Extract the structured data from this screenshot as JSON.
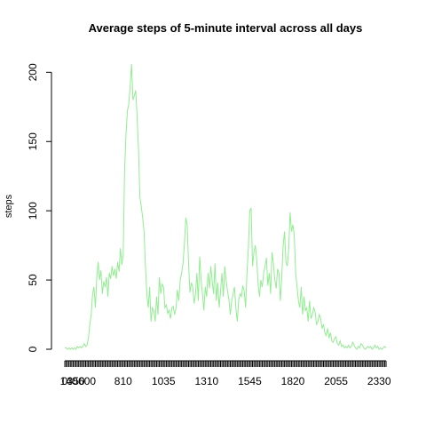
{
  "chart_data": {
    "type": "line",
    "title": "Average steps of 5-minute interval across all days",
    "xlabel": "",
    "ylabel": "steps",
    "xlim": [
      0,
      2355
    ],
    "ylim": [
      0,
      206
    ],
    "x_tick_labels": [
      "0",
      "140",
      "350",
      "600",
      "810",
      "1035",
      "1310",
      "1545",
      "1820",
      "2055",
      "2330"
    ],
    "y_ticks": [
      0,
      50,
      100,
      150,
      200
    ],
    "series_color": "#90ee90",
    "series": [
      {
        "x": [
          0,
          55,
          110,
          165,
          220,
          275,
          300,
          330,
          355,
          410,
          445,
          500,
          505,
          530,
          550,
          555,
          600,
          605,
          610,
          615,
          620,
          625,
          630,
          635,
          640,
          645,
          650,
          655,
          700,
          705,
          710,
          715,
          720,
          725,
          730,
          735,
          740,
          745,
          750,
          755,
          800,
          805,
          810,
          815,
          820,
          825,
          830,
          835,
          840,
          845,
          850,
          855,
          900,
          905,
          910,
          915,
          920,
          925,
          930,
          935,
          940,
          945,
          950,
          955,
          1000,
          1005,
          1010,
          1015,
          1020,
          1025,
          1030,
          1035,
          1040,
          1045,
          1050,
          1055,
          1100,
          1105,
          1110,
          1115,
          1120,
          1125,
          1130,
          1135,
          1140,
          1145,
          1150,
          1155,
          1200,
          1205,
          1210,
          1215,
          1220,
          1225,
          1230,
          1235,
          1240,
          1245,
          1250,
          1255,
          1300,
          1305,
          1310,
          1315,
          1320,
          1325,
          1330,
          1335,
          1340,
          1345,
          1350,
          1355,
          1400,
          1405,
          1410,
          1415,
          1420,
          1425,
          1430,
          1435,
          1440,
          1445,
          1450,
          1455,
          1500,
          1505,
          1510,
          1515,
          1520,
          1525,
          1530,
          1535,
          1540,
          1545,
          1550,
          1555,
          1600,
          1605,
          1610,
          1615,
          1620,
          1625,
          1630,
          1635,
          1640,
          1645,
          1650,
          1655,
          1700,
          1705,
          1710,
          1715,
          1720,
          1725,
          1730,
          1735,
          1740,
          1745,
          1750,
          1755,
          1800,
          1805,
          1810,
          1815,
          1820,
          1825,
          1830,
          1835,
          1840,
          1845,
          1850,
          1855,
          1900,
          1905,
          1910,
          1915,
          1920,
          1925,
          1930,
          1935,
          1940,
          1945,
          1950,
          1955,
          2000,
          2005,
          2010,
          2015,
          2020,
          2025,
          2030,
          2035,
          2040,
          2045,
          2050,
          2055,
          2100,
          2105,
          2110,
          2115,
          2120,
          2125,
          2130,
          2135,
          2140,
          2145,
          2150,
          2155,
          2200,
          2205,
          2210,
          2215,
          2220,
          2225,
          2230,
          2235,
          2240,
          2245,
          2250,
          2255,
          2300,
          2305,
          2310,
          2315,
          2320,
          2325,
          2330,
          2335,
          2340,
          2345,
          2350,
          2355
        ],
        "y": [
          1,
          1,
          0,
          1,
          0,
          1,
          0,
          1,
          0,
          2,
          1,
          2,
          1,
          2,
          4,
          2,
          3,
          8,
          18,
          25,
          40,
          45,
          30,
          52,
          63,
          50,
          57,
          40,
          49,
          45,
          52,
          38,
          55,
          51,
          60,
          53,
          58,
          51,
          63,
          56,
          73,
          61,
          68,
          130,
          155,
          172,
          177,
          190,
          206,
          180,
          183,
          187,
          168,
          145,
          110,
          103,
          95,
          85,
          60,
          40,
          30,
          45,
          20,
          30,
          28,
          20,
          38,
          25,
          52,
          40,
          47,
          45,
          30,
          32,
          26,
          28,
          22,
          30,
          31,
          25,
          30,
          43,
          35,
          50,
          55,
          62,
          76,
          95,
          90,
          62,
          41,
          48,
          45,
          33,
          40,
          55,
          35,
          67,
          50,
          40,
          28,
          45,
          38,
          55,
          44,
          60,
          49,
          40,
          62,
          35,
          48,
          30,
          42,
          55,
          38,
          60,
          50,
          42,
          36,
          25,
          35,
          40,
          45,
          30,
          20,
          35,
          40,
          38,
          46,
          42,
          30,
          55,
          73,
          100,
          102,
          60,
          70,
          75,
          65,
          47,
          38,
          50,
          45,
          55,
          60,
          66,
          46,
          55,
          40,
          70,
          62,
          50,
          44,
          58,
          55,
          35,
          52,
          75,
          85,
          63,
          60,
          72,
          99,
          85,
          90,
          82,
          55,
          45,
          35,
          30,
          45,
          25,
          38,
          28,
          30,
          20,
          35,
          22,
          25,
          30,
          27,
          18,
          20,
          25,
          22,
          15,
          18,
          12,
          10,
          15,
          8,
          12,
          6,
          5,
          8,
          9,
          4,
          3,
          6,
          2,
          3,
          1,
          2,
          1,
          3,
          1,
          2,
          5,
          3,
          1,
          0,
          2,
          1,
          4,
          3,
          1,
          0,
          1,
          2,
          1,
          2,
          0,
          1,
          3,
          1,
          2,
          0,
          1,
          0,
          1,
          2,
          1
        ]
      }
    ],
    "grid": false,
    "legend": "none"
  }
}
